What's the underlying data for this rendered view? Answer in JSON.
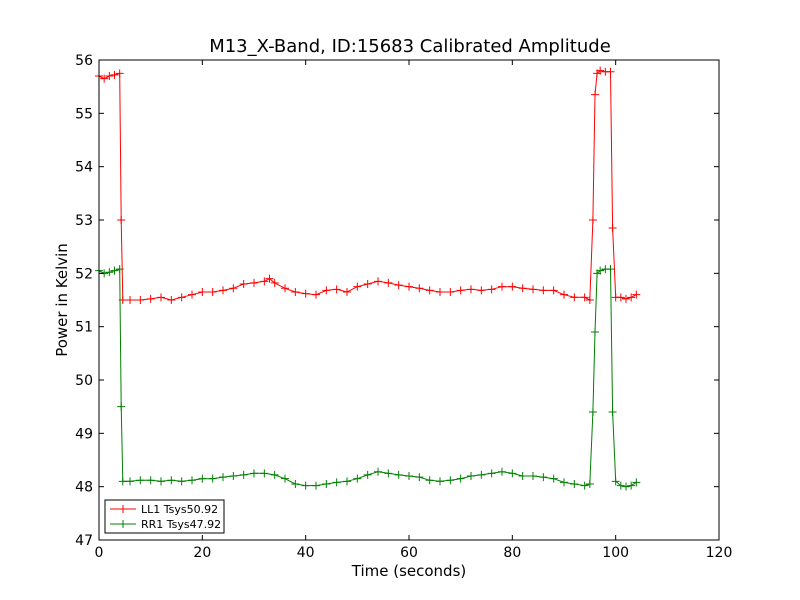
{
  "chart_data": {
    "type": "line",
    "title": "M13_X-Band, ID:15683 Calibrated Amplitude",
    "xlabel": "Time (seconds)",
    "ylabel": "Power in Kelvin",
    "xlim": [
      0,
      120
    ],
    "ylim": [
      47,
      56
    ],
    "xticks": [
      0,
      20,
      40,
      60,
      80,
      100,
      120
    ],
    "yticks": [
      47,
      48,
      49,
      50,
      51,
      52,
      53,
      54,
      55,
      56
    ],
    "grid": false,
    "legend_position": "lower-left",
    "series": [
      {
        "name": "LL1 Tsys50.92",
        "color": "#ff0000",
        "marker": "+",
        "x": [
          0,
          1,
          2,
          3,
          4,
          4.3,
          4.6,
          6,
          8,
          10,
          12,
          14,
          16,
          18,
          20,
          22,
          24,
          26,
          28,
          30,
          32,
          33,
          34,
          36,
          38,
          40,
          42,
          44,
          46,
          48,
          50,
          52,
          54,
          56,
          58,
          60,
          62,
          64,
          66,
          68,
          70,
          72,
          74,
          76,
          78,
          80,
          82,
          84,
          86,
          88,
          90,
          92,
          94,
          95,
          95.6,
          96,
          96.4,
          97,
          98,
          99,
          99.4,
          100,
          101,
          102,
          103,
          104
        ],
        "y": [
          55.7,
          55.65,
          55.7,
          55.72,
          55.75,
          53.0,
          51.5,
          51.5,
          51.5,
          51.52,
          51.55,
          51.5,
          51.55,
          51.6,
          51.65,
          51.65,
          51.68,
          51.72,
          51.8,
          51.82,
          51.85,
          51.9,
          51.82,
          51.72,
          51.65,
          51.62,
          51.6,
          51.68,
          51.7,
          51.65,
          51.75,
          51.8,
          51.85,
          51.82,
          51.78,
          51.75,
          51.72,
          51.68,
          51.65,
          51.65,
          51.68,
          51.7,
          51.68,
          51.7,
          51.75,
          51.75,
          51.72,
          51.7,
          51.68,
          51.68,
          51.6,
          51.55,
          51.55,
          51.5,
          53.0,
          55.35,
          55.75,
          55.8,
          55.78,
          55.78,
          52.85,
          51.55,
          51.55,
          51.52,
          51.55,
          51.6
        ]
      },
      {
        "name": "RR1 Tsys47.92",
        "color": "#008000",
        "marker": "+",
        "x": [
          0,
          1,
          2,
          3,
          4,
          4.3,
          4.6,
          6,
          8,
          10,
          12,
          14,
          16,
          18,
          20,
          22,
          24,
          26,
          28,
          30,
          32,
          34,
          36,
          38,
          40,
          42,
          44,
          46,
          48,
          50,
          52,
          54,
          56,
          58,
          60,
          62,
          64,
          66,
          68,
          70,
          72,
          74,
          76,
          78,
          80,
          82,
          84,
          86,
          88,
          90,
          92,
          94,
          95,
          95.6,
          96,
          96.4,
          97,
          98,
          99,
          99.4,
          100,
          101,
          102,
          103,
          104
        ],
        "y": [
          52.05,
          52.0,
          52.02,
          52.05,
          52.08,
          49.5,
          48.1,
          48.1,
          48.12,
          48.12,
          48.1,
          48.12,
          48.1,
          48.12,
          48.15,
          48.15,
          48.18,
          48.2,
          48.22,
          48.25,
          48.25,
          48.22,
          48.15,
          48.05,
          48.02,
          48.02,
          48.05,
          48.08,
          48.1,
          48.15,
          48.22,
          48.28,
          48.25,
          48.22,
          48.2,
          48.18,
          48.12,
          48.1,
          48.12,
          48.15,
          48.2,
          48.22,
          48.25,
          48.28,
          48.25,
          48.2,
          48.2,
          48.18,
          48.15,
          48.08,
          48.05,
          48.02,
          48.05,
          49.4,
          50.9,
          52.0,
          52.05,
          52.08,
          52.08,
          49.4,
          48.1,
          48.02,
          48.0,
          48.02,
          48.08
        ]
      }
    ]
  }
}
